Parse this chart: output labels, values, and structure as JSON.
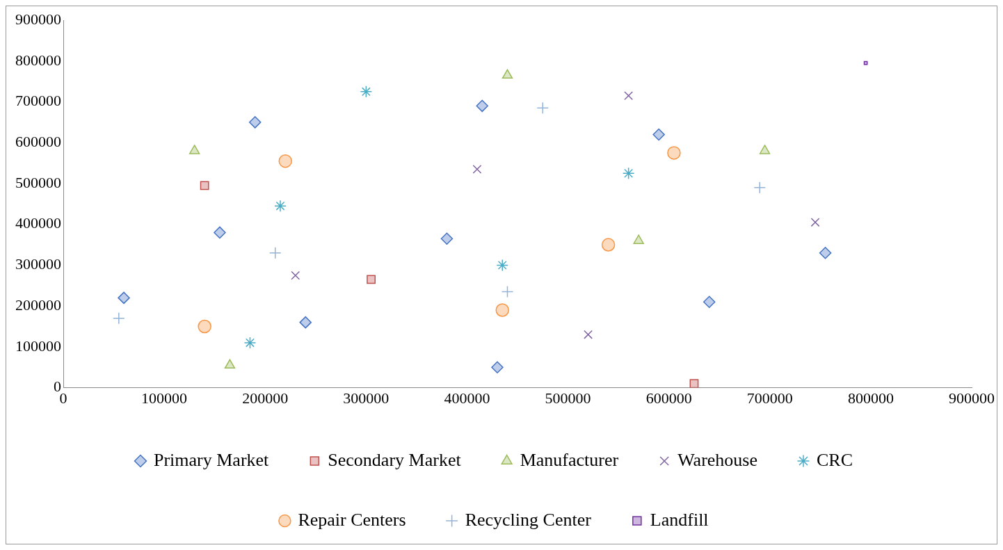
{
  "chart_data": {
    "type": "scatter",
    "xlim": [
      0,
      900000
    ],
    "ylim": [
      0,
      900000
    ],
    "xticks": [
      0,
      100000,
      200000,
      300000,
      400000,
      500000,
      600000,
      700000,
      800000,
      900000
    ],
    "yticks": [
      0,
      100000,
      200000,
      300000,
      400000,
      500000,
      600000,
      700000,
      800000,
      900000
    ],
    "grid": false,
    "legend": "bottom",
    "series": [
      {
        "name": "Primary Market",
        "color": "#4472c4",
        "marker": "diamond",
        "x": [
          60000,
          190000,
          155000,
          240000,
          380000,
          415000,
          430000,
          590000,
          640000,
          755000
        ],
        "values": [
          220000,
          650000,
          380000,
          160000,
          365000,
          690000,
          50000,
          620000,
          210000,
          330000
        ]
      },
      {
        "name": "Secondary Market",
        "color": "#c0504d",
        "marker": "square",
        "x": [
          140000,
          305000,
          625000
        ],
        "values": [
          495000,
          265000,
          10000
        ]
      },
      {
        "name": "Manufacturer",
        "color": "#9bbb59",
        "marker": "triangle",
        "x": [
          130000,
          165000,
          440000,
          570000,
          695000
        ],
        "values": [
          580000,
          55000,
          765000,
          360000,
          580000
        ]
      },
      {
        "name": "Warehouse",
        "color": "#8064a2",
        "marker": "cross",
        "x": [
          230000,
          410000,
          560000,
          520000,
          745000
        ],
        "values": [
          275000,
          535000,
          715000,
          130000,
          405000
        ]
      },
      {
        "name": "CRC",
        "color": "#4bacc6",
        "marker": "cross",
        "x": [
          300000,
          215000,
          185000,
          435000,
          560000
        ],
        "values": [
          725000,
          445000,
          110000,
          300000,
          525000
        ]
      },
      {
        "name": "Repair Centers",
        "color": "#f79646",
        "marker": "circle",
        "x": [
          220000,
          140000,
          435000,
          540000,
          605000
        ],
        "values": [
          555000,
          150000,
          190000,
          350000,
          575000
        ]
      },
      {
        "name": "Recycling Center",
        "color": "#95b3d7",
        "marker": "cross",
        "x": [
          55000,
          210000,
          475000,
          440000,
          690000
        ],
        "values": [
          170000,
          330000,
          685000,
          235000,
          490000
        ]
      },
      {
        "name": "Landfill",
        "color": "#7030a0",
        "marker": "square",
        "x": [
          795000
        ],
        "values": [
          795000
        ]
      }
    ]
  }
}
